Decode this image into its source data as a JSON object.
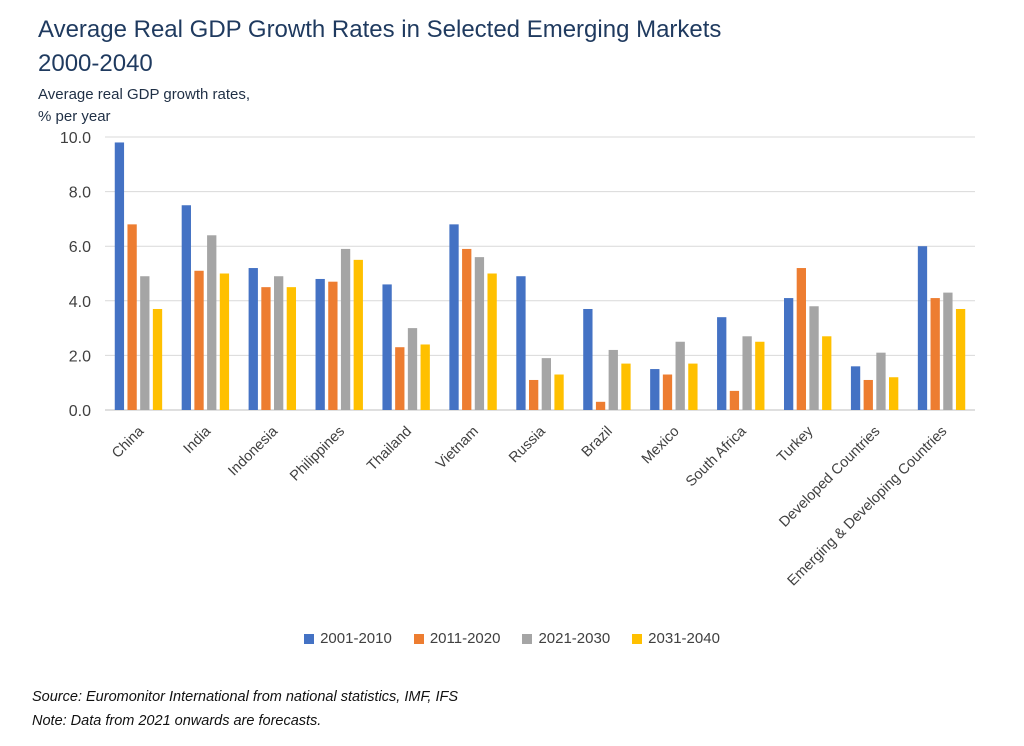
{
  "header": {
    "title_line1": "Average Real GDP Growth Rates in Selected Emerging Markets",
    "title_line2": "2000-2040",
    "subtitle_line1": "Average real GDP growth rates,",
    "subtitle_line2": "% per year"
  },
  "footer": {
    "source": "Source: Euromonitor International from national statistics, IMF, IFS",
    "note": "Note: Data from 2021 onwards are forecasts."
  },
  "chart_data": {
    "type": "bar",
    "title": "Average Real GDP Growth Rates in Selected Emerging Markets 2000-2040",
    "ylabel": "Average real GDP growth rates, % per year",
    "xlabel": "",
    "ylim": [
      0,
      10
    ],
    "yticks": [
      "0.0",
      "2.0",
      "4.0",
      "6.0",
      "8.0",
      "10.0"
    ],
    "grid": true,
    "legend_position": "bottom",
    "categories": [
      "China",
      "India",
      "Indonesia",
      "Philippines",
      "Thailand",
      "Vietnam",
      "Russia",
      "Brazil",
      "Mexico",
      "South Africa",
      "Turkey",
      "Developed Countries",
      "Emerging & Developing Countries"
    ],
    "series": [
      {
        "name": "2001-2010",
        "color": "#4472C4",
        "values": [
          9.8,
          7.5,
          5.2,
          4.8,
          4.6,
          6.8,
          4.9,
          3.7,
          1.5,
          3.4,
          4.1,
          1.6,
          6.0
        ]
      },
      {
        "name": "2011-2020",
        "color": "#ED7D31",
        "values": [
          6.8,
          5.1,
          4.5,
          4.7,
          2.3,
          5.9,
          1.1,
          0.3,
          1.3,
          0.7,
          5.2,
          1.1,
          4.1
        ]
      },
      {
        "name": "2021-2030",
        "color": "#A5A5A5",
        "values": [
          4.9,
          6.4,
          4.9,
          5.9,
          3.0,
          5.6,
          1.9,
          2.2,
          2.5,
          2.7,
          3.8,
          2.1,
          4.3
        ]
      },
      {
        "name": "2031-2040",
        "color": "#FFC000",
        "values": [
          3.7,
          5.0,
          4.5,
          5.5,
          2.4,
          5.0,
          1.3,
          1.7,
          1.7,
          2.5,
          2.7,
          1.2,
          3.7
        ]
      }
    ]
  }
}
